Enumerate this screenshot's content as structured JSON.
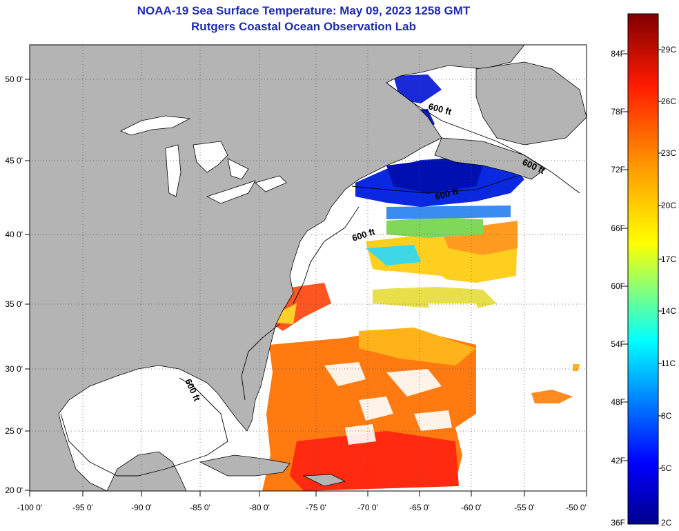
{
  "header": {
    "title": "NOAA-19 Sea Surface Temperature:  May 09, 2023 1258 GMT",
    "subtitle": "Rutgers Coastal Ocean Observation Lab"
  },
  "map": {
    "lon_ticks": [
      "-100 0'",
      "-95 0'",
      "-90 0'",
      "-85 0'",
      "-80 0'",
      "-75 0'",
      "-70 0'",
      "-65 0'",
      "-60 0'",
      "-55 0'",
      "-50 0'"
    ],
    "lat_ticks": [
      "20 0'",
      "25 0'",
      "30 0'",
      "35 0'",
      "40 0'",
      "45 0'",
      "50 0'"
    ],
    "contour_labels": [
      "600 ft",
      "600 ft",
      "600 ft",
      "600 ft",
      "600 ft"
    ],
    "colors": {
      "land": "#b4b4b4",
      "ocean_nodata": "#ffffff",
      "coast": "#000000",
      "grid": "#555555"
    }
  },
  "colorbar": {
    "f_labels": [
      "84F",
      "78F",
      "72F",
      "66F",
      "60F",
      "54F",
      "48F",
      "42F",
      "36F"
    ],
    "c_labels": [
      "29C",
      "26C",
      "23C",
      "20C",
      "17C",
      "14C",
      "11C",
      "8C",
      "5C",
      "2C"
    ],
    "range_c": [
      2,
      31
    ]
  }
}
